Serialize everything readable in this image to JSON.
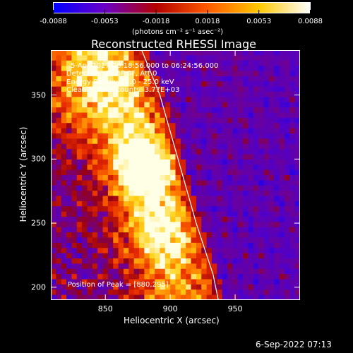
{
  "chart_data": {
    "type": "heatmap",
    "title": "Reconstructed RHESSI Image",
    "xlabel": "Heliocentric X (arcsec)",
    "ylabel": "Heliocentric Y (arcsec)",
    "xlim": [
      808,
      1000
    ],
    "ylim": [
      190,
      385
    ],
    "x_ticks": [
      850,
      900,
      950
    ],
    "y_ticks": [
      200,
      250,
      300,
      350
    ],
    "colorbar": {
      "min": -0.0088,
      "max": 0.0088,
      "tick_labels": [
        "-0.0088",
        "-0.0053",
        "-0.0018",
        "0.0018",
        "0.0053",
        "0.0088"
      ],
      "units_label": "(photons cm⁻² s⁻¹ asec⁻²)",
      "colors": [
        "#0000ff",
        "#6a00c8",
        "#b40000",
        "#ff5a00",
        "#ffc800",
        "#ffffff"
      ]
    },
    "annotations": {
      "time_range": "5-Apr-2017 06:18:56.000 to 06:24:56.000",
      "detectors": "Detectors: 3F 6F 8F, Att 0",
      "energy_range": "Energy Range: 12.0 - 25.0 keV",
      "clean": "Clean     Total counts: 3.77E+03",
      "peak": "Position of Peak = [880,295]"
    },
    "peak_position": [
      880,
      295
    ],
    "limb_curve": [
      [
        878,
        385
      ],
      [
        892,
        350
      ],
      [
        906,
        300
      ],
      [
        920,
        250
      ],
      [
        933,
        210
      ],
      [
        937,
        190
      ]
    ],
    "image_grid": {
      "nx": 48,
      "ny": 48
    }
  },
  "footer": {
    "timestamp": "6-Sep-2022 07:13"
  }
}
